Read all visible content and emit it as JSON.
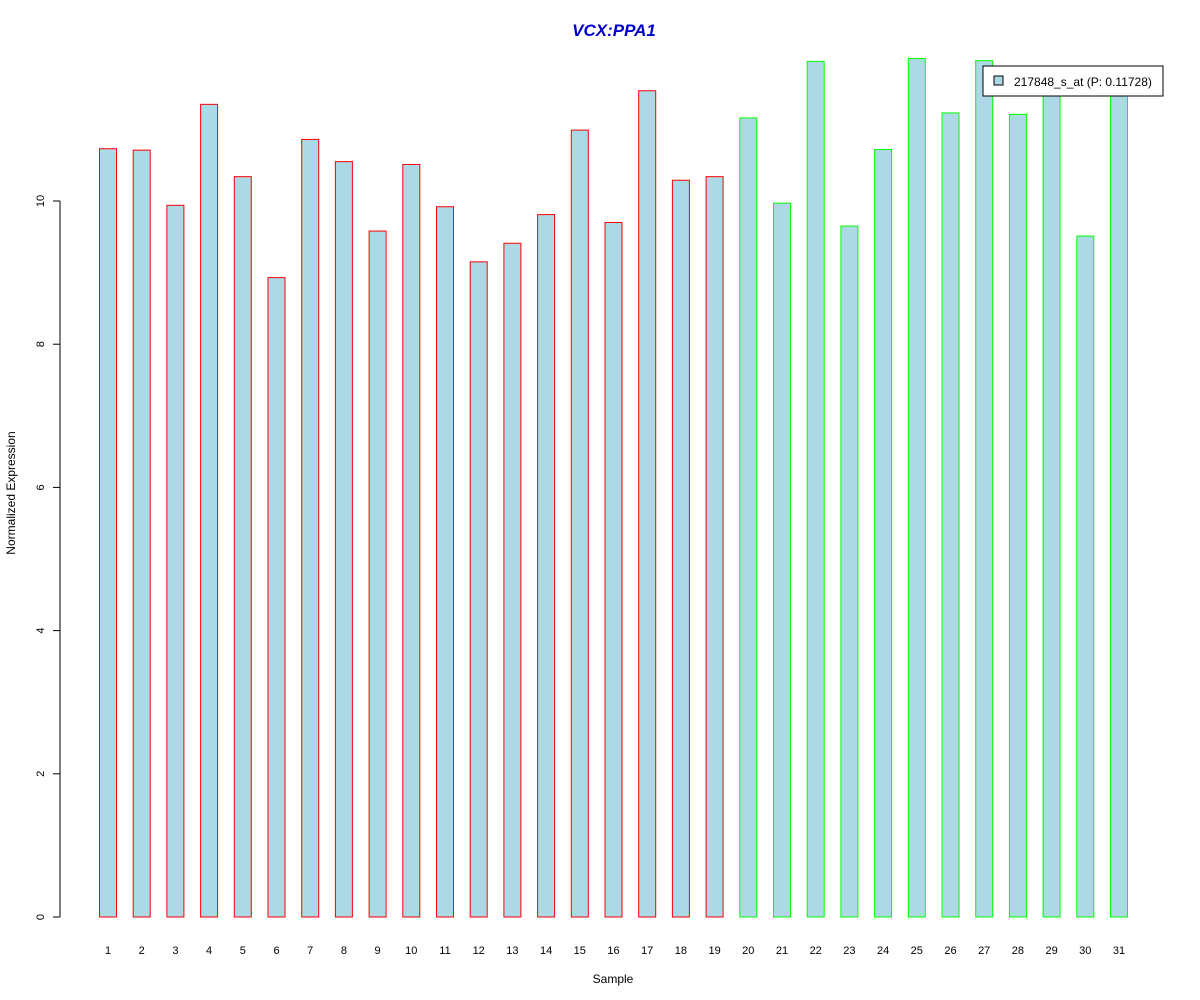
{
  "colors": {
    "bar_fill": "#add8e6",
    "group_1_border": "#ff0000",
    "group_2_border": "#00ff00",
    "title": "#0000cd",
    "axis": "#000000"
  },
  "chart_data": {
    "type": "bar",
    "title": "VCX:PPA1",
    "xlabel": "Sample",
    "ylabel": "Normalized Expression",
    "ylim": [
      0,
      12
    ],
    "yticks": [
      0,
      2,
      4,
      6,
      8,
      10
    ],
    "grid": false,
    "legend_position": "top-right",
    "categories": [
      "1",
      "2",
      "3",
      "4",
      "5",
      "6",
      "7",
      "8",
      "9",
      "10",
      "11",
      "12",
      "13",
      "14",
      "15",
      "16",
      "17",
      "18",
      "19",
      "20",
      "21",
      "22",
      "23",
      "24",
      "25",
      "26",
      "27",
      "28",
      "29",
      "30",
      "31"
    ],
    "series": [
      {
        "name": "217848_s_at (P: 0.11728)",
        "values": [
          10.73,
          10.71,
          9.94,
          11.35,
          10.34,
          8.93,
          10.86,
          10.55,
          9.58,
          10.51,
          9.92,
          9.15,
          9.41,
          9.81,
          10.99,
          9.7,
          11.54,
          10.29,
          10.34,
          11.16,
          9.97,
          11.95,
          9.65,
          10.72,
          11.99,
          11.23,
          11.96,
          11.21,
          11.48,
          9.51,
          11.62
        ]
      }
    ],
    "groups": [
      1,
      1,
      1,
      1,
      1,
      1,
      1,
      1,
      1,
      1,
      1,
      1,
      1,
      1,
      1,
      1,
      1,
      1,
      1,
      2,
      2,
      2,
      2,
      2,
      2,
      2,
      2,
      2,
      2,
      2,
      2
    ]
  }
}
